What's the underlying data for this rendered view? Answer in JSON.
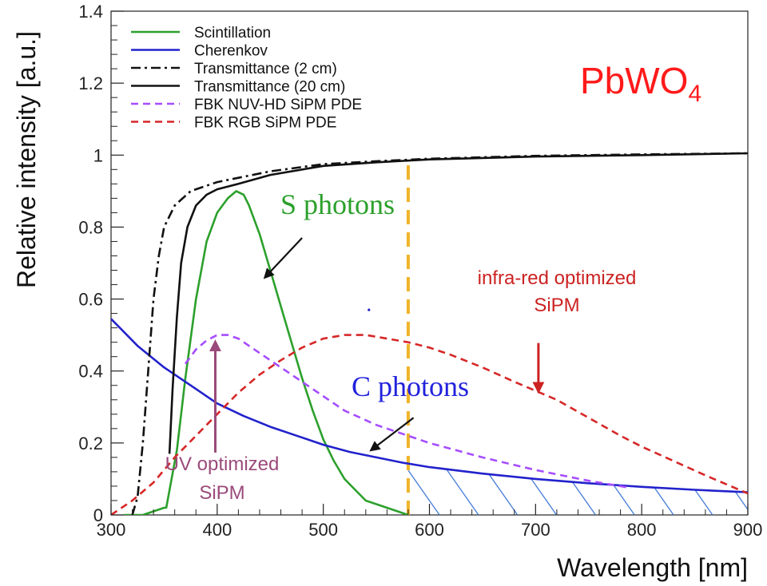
{
  "chart_data": {
    "type": "line",
    "xlabel": "Wavelength [nm]",
    "ylabel": "Relative intensity [a.u.]",
    "xlim": [
      300,
      900
    ],
    "ylim": [
      0,
      1.4
    ],
    "x_ticks": [
      300,
      400,
      500,
      600,
      700,
      800,
      900
    ],
    "x_tick_labels": [
      "300",
      "400",
      "500",
      "600",
      "700",
      "800",
      "900"
    ],
    "y_ticks": [
      0,
      0.2,
      0.4,
      0.6,
      0.8,
      1,
      1.2,
      1.4
    ],
    "y_tick_labels": [
      "0",
      "0.2",
      "0.4",
      "0.6",
      "0.8",
      "1",
      "1.2",
      "1.4"
    ],
    "grid": false,
    "legend_position": "top-left",
    "series": [
      {
        "name": "Scintillation",
        "color": "#2ca02c",
        "style": "solid",
        "points": [
          [
            312,
            0
          ],
          [
            330,
            0
          ],
          [
            340,
            0.01
          ],
          [
            350,
            0.02
          ],
          [
            352,
            0.02
          ],
          [
            362,
            0.18
          ],
          [
            370,
            0.38
          ],
          [
            380,
            0.6
          ],
          [
            390,
            0.76
          ],
          [
            400,
            0.84
          ],
          [
            410,
            0.88
          ],
          [
            418,
            0.9
          ],
          [
            425,
            0.89
          ],
          [
            430,
            0.86
          ],
          [
            440,
            0.78
          ],
          [
            450,
            0.68
          ],
          [
            460,
            0.58
          ],
          [
            470,
            0.48
          ],
          [
            480,
            0.38
          ],
          [
            490,
            0.29
          ],
          [
            500,
            0.21
          ],
          [
            510,
            0.15
          ],
          [
            520,
            0.1
          ],
          [
            530,
            0.07
          ],
          [
            540,
            0.04
          ],
          [
            550,
            0.03
          ],
          [
            560,
            0.02
          ],
          [
            570,
            0.01
          ],
          [
            580,
            0
          ]
        ]
      },
      {
        "name": "Cherenkov",
        "color": "#2222cc",
        "style": "solid",
        "points": [
          [
            300,
            0.545
          ],
          [
            325,
            0.47
          ],
          [
            350,
            0.41
          ],
          [
            375,
            0.36
          ],
          [
            400,
            0.31
          ],
          [
            425,
            0.275
          ],
          [
            450,
            0.245
          ],
          [
            475,
            0.22
          ],
          [
            500,
            0.195
          ],
          [
            525,
            0.175
          ],
          [
            550,
            0.16
          ],
          [
            575,
            0.145
          ],
          [
            600,
            0.133
          ],
          [
            650,
            0.115
          ],
          [
            700,
            0.1
          ],
          [
            750,
            0.088
          ],
          [
            800,
            0.078
          ],
          [
            850,
            0.07
          ],
          [
            900,
            0.063
          ]
        ]
      },
      {
        "name": "Transmittance (2 cm)",
        "color": "#111111",
        "style": "dashdot",
        "points": [
          [
            320,
            0
          ],
          [
            325,
            0.05
          ],
          [
            330,
            0.2
          ],
          [
            335,
            0.4
          ],
          [
            340,
            0.6
          ],
          [
            345,
            0.72
          ],
          [
            350,
            0.8
          ],
          [
            360,
            0.86
          ],
          [
            375,
            0.9
          ],
          [
            400,
            0.925
          ],
          [
            450,
            0.955
          ],
          [
            500,
            0.975
          ],
          [
            550,
            0.983
          ],
          [
            600,
            0.99
          ],
          [
            700,
            0.998
          ],
          [
            800,
            1.002
          ],
          [
            900,
            1.005
          ]
        ]
      },
      {
        "name": "Transmittance (20 cm)",
        "color": "#111111",
        "style": "solid",
        "points": [
          [
            355,
            0.17
          ],
          [
            358,
            0.35
          ],
          [
            362,
            0.55
          ],
          [
            366,
            0.7
          ],
          [
            372,
            0.8
          ],
          [
            380,
            0.86
          ],
          [
            390,
            0.89
          ],
          [
            400,
            0.905
          ],
          [
            420,
            0.92
          ],
          [
            450,
            0.945
          ],
          [
            500,
            0.97
          ],
          [
            550,
            0.98
          ],
          [
            600,
            0.988
          ],
          [
            700,
            0.996
          ],
          [
            800,
            1.0
          ],
          [
            900,
            1.005
          ]
        ]
      },
      {
        "name": "FBK NUV-HD SiPM PDE",
        "color": "#a64dff",
        "style": "dashed",
        "points": [
          [
            370,
            0.42
          ],
          [
            380,
            0.46
          ],
          [
            390,
            0.485
          ],
          [
            400,
            0.5
          ],
          [
            410,
            0.5
          ],
          [
            420,
            0.49
          ],
          [
            440,
            0.45
          ],
          [
            460,
            0.41
          ],
          [
            480,
            0.37
          ],
          [
            500,
            0.33
          ],
          [
            520,
            0.29
          ],
          [
            550,
            0.25
          ],
          [
            600,
            0.2
          ],
          [
            650,
            0.16
          ],
          [
            700,
            0.125
          ],
          [
            750,
            0.095
          ],
          [
            790,
            0.075
          ]
        ]
      },
      {
        "name": "FBK RGB SiPM PDE",
        "color": "#d62728",
        "style": "dashed",
        "points": [
          [
            300,
            0.0
          ],
          [
            320,
            0.04
          ],
          [
            340,
            0.09
          ],
          [
            360,
            0.16
          ],
          [
            380,
            0.22
          ],
          [
            400,
            0.28
          ],
          [
            420,
            0.34
          ],
          [
            440,
            0.39
          ],
          [
            460,
            0.43
          ],
          [
            480,
            0.465
          ],
          [
            500,
            0.49
          ],
          [
            520,
            0.5
          ],
          [
            540,
            0.5
          ],
          [
            560,
            0.49
          ],
          [
            580,
            0.48
          ],
          [
            600,
            0.465
          ],
          [
            620,
            0.445
          ],
          [
            650,
            0.41
          ],
          [
            680,
            0.37
          ],
          [
            700,
            0.345
          ],
          [
            720,
            0.32
          ],
          [
            750,
            0.27
          ],
          [
            780,
            0.22
          ],
          [
            800,
            0.19
          ],
          [
            830,
            0.15
          ],
          [
            860,
            0.11
          ],
          [
            880,
            0.085
          ],
          [
            900,
            0.06
          ]
        ]
      }
    ],
    "cutoff_line": {
      "x": 580,
      "color": "#f0b429",
      "style": "dashed"
    },
    "hatched_region": {
      "x_from": 580,
      "x_to": 900,
      "under_series": "Cherenkov",
      "color": "#3a73d6"
    },
    "stray_point": {
      "x": 543,
      "y": 0.57,
      "color": "#2222cc"
    },
    "annotations": {
      "material": {
        "text_main": "PbWO",
        "text_sub": "4",
        "color": "#ff1a1a"
      },
      "s_photons": {
        "text": "S photons",
        "color": "#2ca02c",
        "arrow_from": [
          480,
          0.77
        ],
        "arrow_to": [
          445,
          0.66
        ]
      },
      "c_photons": {
        "text": "C photons",
        "color": "#2222dd",
        "arrow_from": [
          585,
          0.27
        ],
        "arrow_to": [
          545,
          0.18
        ]
      },
      "ir_sipm": {
        "line1": "infra-red optimized",
        "line2": "SiPM",
        "color": "#cc2222",
        "arrow_from": [
          720,
          0.5
        ],
        "arrow_to": [
          720,
          0.33
        ]
      },
      "uv_sipm": {
        "line1": "UV optimized",
        "line2": "SiPM",
        "color": "#9a4a7a",
        "arrow_from": [
          405,
          0.24
        ],
        "arrow_to": [
          405,
          0.49
        ]
      }
    }
  }
}
